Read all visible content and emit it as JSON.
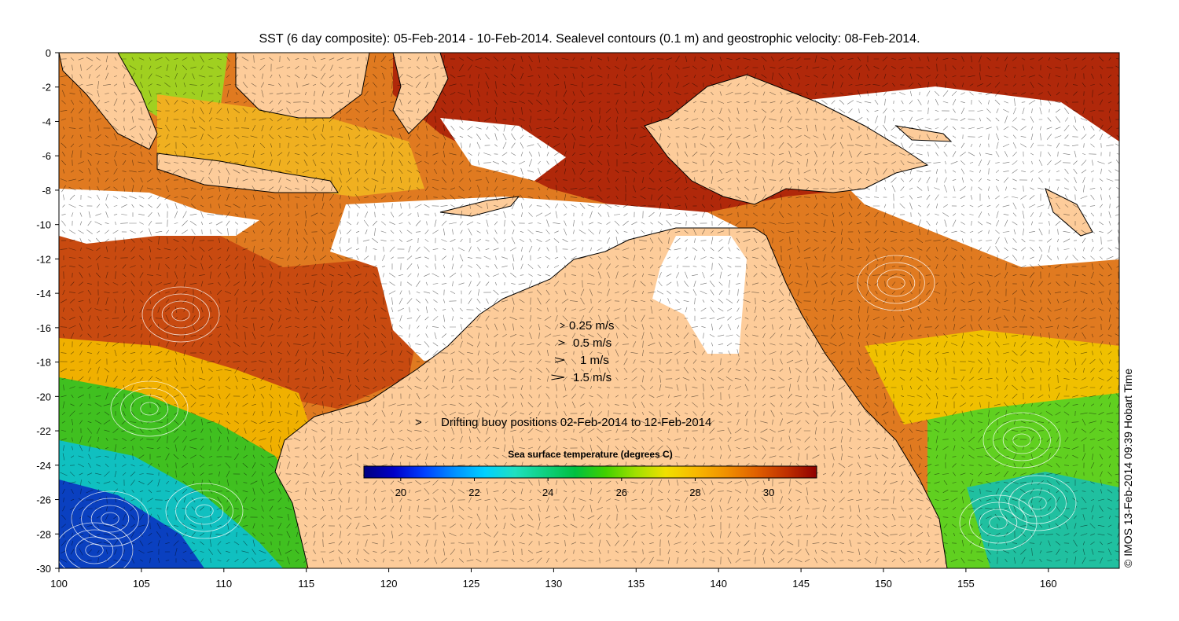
{
  "title": "SST (6 day composite): 05-Feb-2014 - 10-Feb-2014. Sealevel contours (0.1 m) and geostrophic velocity: 08-Feb-2014.",
  "credit": "© IMOS 13-Feb-2014 09:39 Hobart Time",
  "axes": {
    "lon_ticks": [
      "100",
      "105",
      "110",
      "115",
      "120",
      "125",
      "130",
      "135",
      "140",
      "145",
      "150",
      "155",
      "160"
    ],
    "lat_ticks": [
      "0",
      "-2",
      "-4",
      "-6",
      "-8",
      "-10",
      "-12",
      "-14",
      "-16",
      "-18",
      "-20",
      "-22",
      "-24",
      "-26",
      "-28",
      "-30"
    ]
  },
  "velocity_legend": {
    "items": [
      {
        "label": "0.25 m/s",
        "speed": 0.25
      },
      {
        "label": "0.5 m/s",
        "speed": 0.5
      },
      {
        "label": "1 m/s",
        "speed": 1
      },
      {
        "label": "1.5 m/s",
        "speed": 1.5
      }
    ]
  },
  "buoy_legend": {
    "symbol": ">",
    "label": "Drifting buoy positions 02-Feb-2014 to 12-Feb-2014",
    "color": "#e040e0"
  },
  "colorbar": {
    "title": "Sea surface temperature (degrees C)",
    "min": 19,
    "max": 31.3,
    "tick_labels": [
      "20",
      "22",
      "24",
      "26",
      "28",
      "30"
    ],
    "colors": [
      "#00007f",
      "#0000c8",
      "#0040ff",
      "#0090ff",
      "#00d0ff",
      "#20e0c0",
      "#10d080",
      "#00c040",
      "#40d000",
      "#a0e000",
      "#f0e000",
      "#f8b800",
      "#f09000",
      "#e06000",
      "#c03000",
      "#900000"
    ]
  },
  "colors": {
    "land": "#fdcc9a",
    "no_data": "#ffffff",
    "coastline": "#000000"
  }
}
